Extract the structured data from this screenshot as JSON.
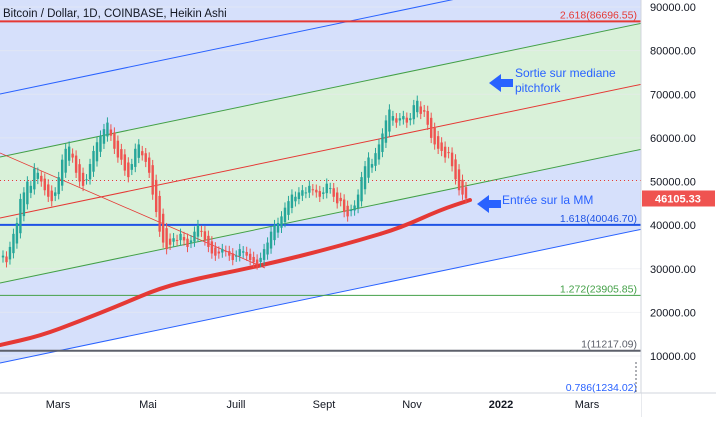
{
  "chart_data": {
    "type": "candlestick",
    "title": "Bitcoin / Dollar, 1D, COINBASE, Heikin Ashi",
    "y_axis_ticks": [
      "90000.00",
      "80000.00",
      "70000.00",
      "60000.00",
      "50000.00",
      "40000.00",
      "30000.00",
      "20000.00",
      "10000.00"
    ],
    "y_axis_tick_values": [
      90000,
      80000,
      70000,
      60000,
      50000,
      40000,
      30000,
      20000,
      10000
    ],
    "x_axis_ticks": [
      "Mars",
      "Mai",
      "Juill",
      "Sept",
      "Nov",
      "2022",
      "Mars"
    ],
    "ylim": [
      -2000,
      91500
    ],
    "last_price": "46105.33",
    "last_price_value": 46105.33,
    "fib_levels": [
      {
        "label": "2.618(86696.55)",
        "value": 86696.55,
        "color": "#e53935"
      },
      {
        "label": "1.618(40046.70)",
        "value": 40046.7,
        "color": "#1e53e5"
      },
      {
        "label": "1.272(23905.85)",
        "value": 23905.85,
        "color": "#43a047"
      },
      {
        "label": "1(11217.09)",
        "value": 11217.09,
        "color": "#5d606b"
      },
      {
        "label": "0.786(1234.02)",
        "value": 1234.02,
        "color": "#2962ff"
      }
    ],
    "annotations": [
      {
        "text_lines": [
          "Sortie sur mediane",
          "pitchfork"
        ]
      },
      {
        "text_lines": [
          "Entrée sur la MM"
        ]
      }
    ],
    "moving_average": {
      "color": "#e53935"
    },
    "candles_close": [
      33000,
      31500,
      35000,
      38000,
      40500,
      46000,
      47500,
      50000,
      49000,
      53000,
      52000,
      50000,
      48000,
      46500,
      45500,
      47500,
      51000,
      55000,
      57500,
      58000,
      55500,
      52000,
      50000,
      49000,
      50500,
      54000,
      57000,
      59000,
      60500,
      62000,
      63500,
      60500,
      57500,
      55500,
      55000,
      52500,
      51000,
      54000,
      57500,
      58500,
      56000,
      54500,
      52000,
      47000,
      43000,
      38500,
      36000,
      34500,
      35500,
      37000,
      36500,
      38000,
      36500,
      35000,
      36500,
      38500,
      40000,
      38500,
      36500,
      35000,
      33500,
      33000,
      33500,
      34500,
      34000,
      33000,
      32000,
      33000,
      34500,
      34000,
      33000,
      32000,
      31500,
      31000,
      32500,
      34500,
      36000,
      38500,
      40000,
      40500,
      42000,
      44000,
      45500,
      47000,
      46500,
      47500,
      48000,
      47500,
      49000,
      48000,
      47500,
      46500,
      47500,
      49500,
      48500,
      46500,
      45000,
      45500,
      43000,
      42000,
      43500,
      44500,
      47000,
      51000,
      53500,
      55500,
      54000,
      56500,
      58500,
      61000,
      64000,
      66500,
      65000,
      63500,
      64500,
      65000,
      63500,
      64500,
      67500,
      68500,
      65500,
      66000,
      63000,
      60000,
      58500,
      57500,
      57000,
      55500,
      56500,
      53500,
      50500,
      48000,
      47000,
      46105.33
    ],
    "series": [
      {
        "name": "",
        "values_ref": "candles_close"
      }
    ],
    "grid": true
  }
}
